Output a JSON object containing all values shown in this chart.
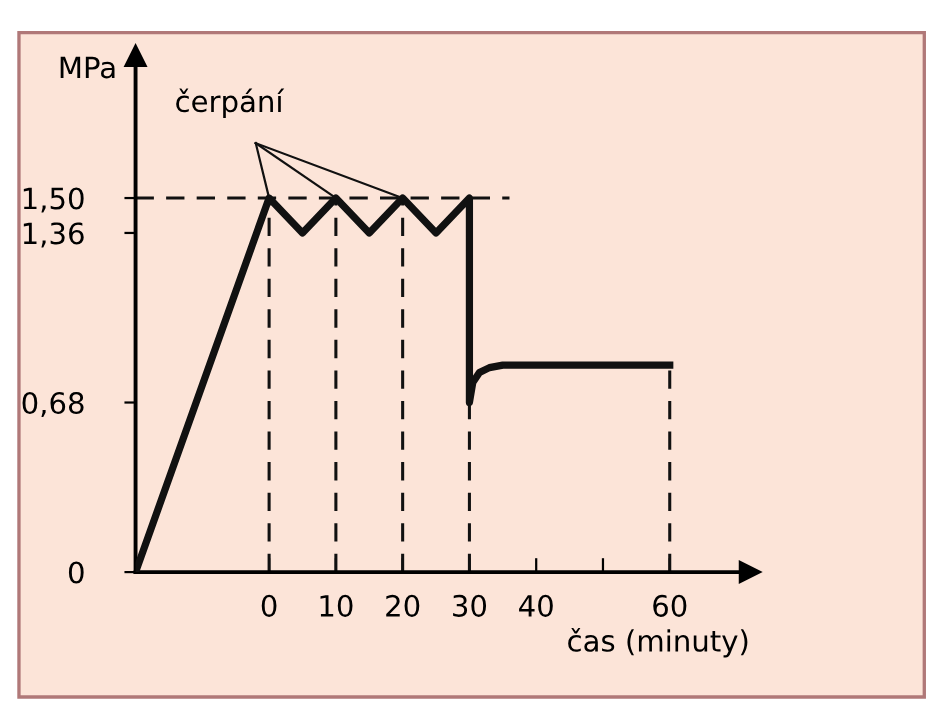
{
  "chart_data": {
    "type": "line",
    "xlabel": "čas (minuty)",
    "ylabel": "MPa",
    "x": [
      -20,
      0,
      5,
      10,
      15,
      20,
      25,
      30,
      30,
      30.5,
      31.5,
      33,
      35,
      60
    ],
    "series": [
      {
        "color": "#111111",
        "values": [
          0,
          1.5,
          1.36,
          1.5,
          1.36,
          1.5,
          1.36,
          1.5,
          0.68,
          0.76,
          0.8,
          0.82,
          0.83,
          0.83
        ]
      }
    ],
    "xlim": [
      -20,
      72
    ],
    "ylim": [
      0,
      2.07
    ],
    "xticks": [
      0,
      10,
      20,
      30,
      40,
      {
        "value": 50,
        "label": null
      },
      60
    ],
    "yticks": [
      0,
      {
        "value": 0.68,
        "label": "0,68"
      },
      {
        "value": 1.36,
        "label": "1,36"
      },
      {
        "value": 1.5,
        "label": "1,50"
      }
    ],
    "ref_lines": [
      {
        "axis": "y",
        "value": 1.5,
        "line_style": "dashed",
        "color": "#111111"
      },
      {
        "axis": "x",
        "value": 0,
        "line_style": "dashed",
        "color": "#111111"
      },
      {
        "axis": "x",
        "value": 10,
        "line_style": "dashed",
        "color": "#111111"
      },
      {
        "axis": "x",
        "value": 20,
        "line_style": "dashed",
        "color": "#111111"
      },
      {
        "axis": "x",
        "value": 30,
        "line_style": "dashed",
        "color": "#111111"
      },
      {
        "axis": "x",
        "value": 60,
        "line_style": "dashed",
        "color": "#111111"
      }
    ],
    "annotations": [
      {
        "text": "čerpání",
        "x": 20,
        "y": 1.5
      }
    ],
    "grid": false,
    "legend": false,
    "marker": "none",
    "line_style": "solid"
  }
}
